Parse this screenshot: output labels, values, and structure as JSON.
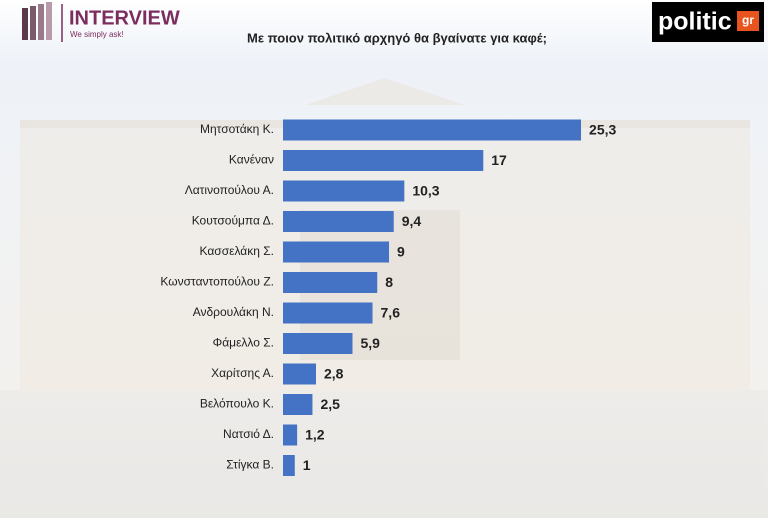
{
  "header": {
    "logo": "INTERVIEW",
    "tagline": "We simply ask!",
    "site": "politic",
    "site_suffix": "gr"
  },
  "chart_data": {
    "type": "hbar",
    "title": "Με ποιον πολιτικό αρχηγό θα βγαίνατε για καφέ;",
    "categories": [
      "Μητσοτάκη Κ.",
      "Κανέναν",
      "Λατινοπούλου Α.",
      "Κουτσούμπα Δ.",
      "Κασσελάκη Σ.",
      "Κωνσταντοπούλου Ζ.",
      "Ανδρουλάκη Ν.",
      "Φάμελλο Σ.",
      "Χαρίτσης Α.",
      "Βελόπουλο Κ.",
      "Νατσιό Δ.",
      "Στίγκα Β."
    ],
    "values": [
      25.3,
      17,
      10.3,
      9.4,
      9,
      8,
      7.6,
      5.9,
      2.8,
      2.5,
      1.2,
      1
    ],
    "value_labels": [
      "25,3",
      "17",
      "10,3",
      "9,4",
      "9",
      "8",
      "7,6",
      "5,9",
      "2,8",
      "2,5",
      "1,2",
      "1"
    ],
    "color": "#4472c4"
  }
}
